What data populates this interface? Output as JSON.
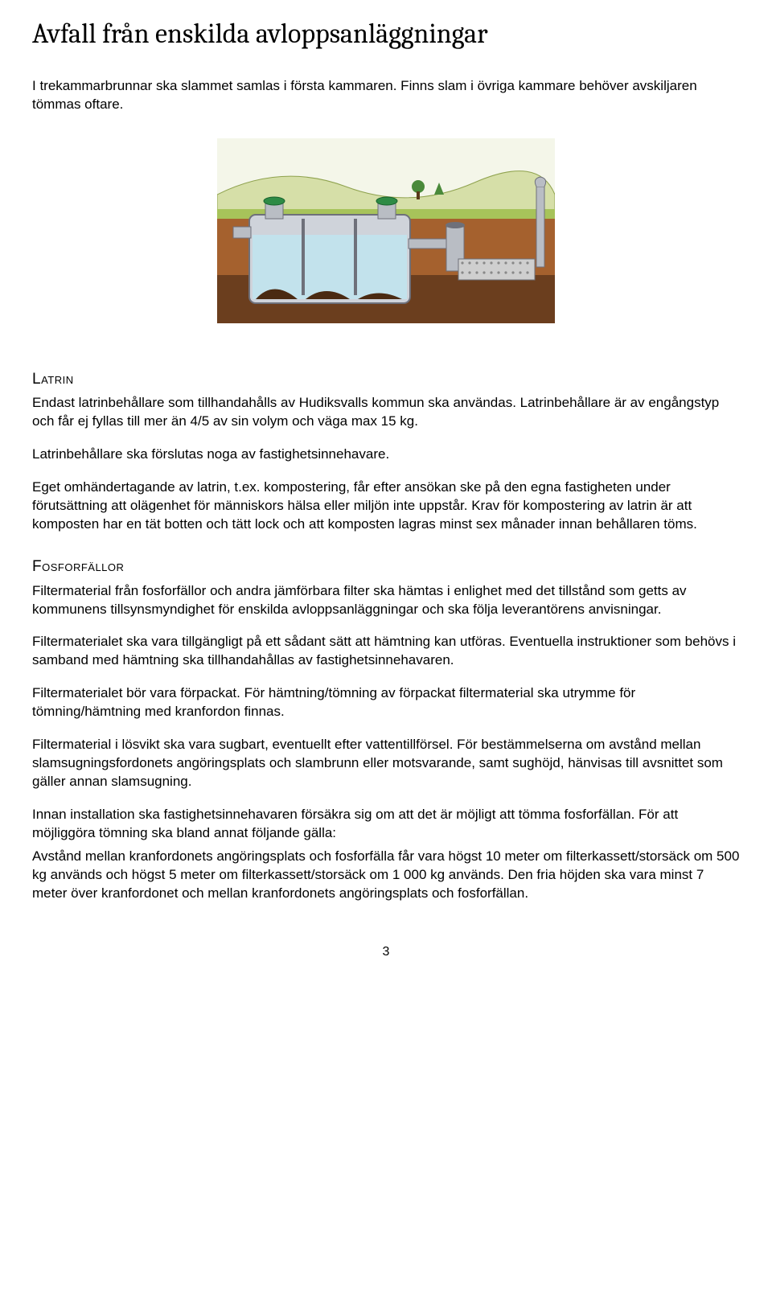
{
  "title": "Avfall från enskilda avloppsanläggningar",
  "intro": "I trekammarbrunnar ska slammet samlas i första kammaren. Finns slam i övriga kammare behöver avskiljaren tömmas oftare.",
  "diagram": {
    "alt": "Trekammarbrunn cross-section",
    "sky_color": "#f4f6e9",
    "hill_color": "#d6dfa8",
    "grass_color": "#a7c35a",
    "soil_top": "#a5612e",
    "soil_bottom": "#6b3e1e",
    "tank_stroke": "#6e707a",
    "tank_fill": "#cfd3da",
    "water_fill": "#bfe4ee",
    "sludge_fill": "#4a2a12",
    "lid_fill": "#2e8b45",
    "gravel_fill": "#cfcfcf",
    "pipe_fill": "#b9bdc4",
    "tree_fill": "#4a8a3a"
  },
  "sections": {
    "latrin": {
      "heading": "Latrin",
      "p1": "Endast latrinbehållare som tillhandahålls av Hudiksvalls kommun ska användas. Latrinbehållare är av engångstyp och får ej fyllas till mer än 4/5 av sin volym och väga max 15 kg.",
      "p2": "Latrinbehållare ska förslutas noga av fastighetsinnehavare.",
      "p3": "Eget omhändertagande av latrin, t.ex. kompostering, får efter ansökan ske på den egna fastigheten under förutsättning att olägenhet för människors hälsa eller miljön inte uppstår. Krav för kompostering av latrin är att komposten har en tät botten och tätt lock och att komposten lagras minst sex månader innan behållaren töms."
    },
    "fosforfallor": {
      "heading": "Fosforfällor",
      "p1": "Filtermaterial från fosforfällor och andra jämförbara filter ska hämtas i enlighet med det tillstånd som getts av kommunens tillsynsmyndighet för enskilda avloppsanläggningar och ska följa leverantörens anvisningar.",
      "p2": "Filtermaterialet ska vara tillgängligt på ett sådant sätt att hämtning kan utföras. Eventuella instruktioner som behövs i samband med hämtning ska tillhandahållas av fastighetsinnehavaren.",
      "p3": "Filtermaterialet bör vara förpackat. För hämtning/tömning av förpackat filtermaterial ska utrymme för tömning/hämtning med kranfordon finnas.",
      "p4": "Filtermaterial i lösvikt ska vara sugbart, eventuellt efter vattentillförsel. För bestämmelserna om avstånd mellan slamsugningsfordonets angöringsplats och slambrunn eller motsvarande, samt sughöjd, hänvisas till avsnittet som gäller annan slamsugning.",
      "p5": "Innan installation ska fastighetsinnehavaren försäkra sig om att det är möjligt att tömma fosforfällan. För att möjliggöra tömning ska bland annat följande gälla:",
      "p6": "Avstånd mellan kranfordonets angöringsplats och fosforfälla får vara högst 10 meter om filterkassett/storsäck om 500 kg används och högst 5 meter om filterkassett/storsäck om 1 000 kg används. Den fria höjden ska vara minst 7 meter över kranfordonet och mellan kranfordonets angöringsplats och fosforfällan."
    }
  },
  "page_number": "3"
}
